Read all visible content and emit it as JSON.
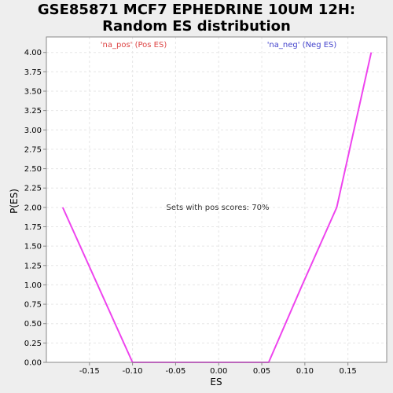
{
  "title_line1": "GSE85871 MCF7 EPHEDRINE 10UM 12H:",
  "title_line2": "Random ES distribution",
  "chart_data": {
    "type": "line",
    "xlabel": "ES",
    "ylabel": "P(ES)",
    "xlim": [
      -0.2,
      0.195
    ],
    "ylim": [
      0,
      4.2
    ],
    "x_ticks": [
      -0.15,
      -0.1,
      -0.05,
      0.0,
      0.05,
      0.1,
      0.15
    ],
    "x_tick_labels": [
      "-0.15",
      "-0.10",
      "-0.05",
      "0.00",
      "0.05",
      "0.10",
      "0.15"
    ],
    "y_ticks": [
      0,
      0.25,
      0.5,
      0.75,
      1.0,
      1.25,
      1.5,
      1.75,
      2.0,
      2.25,
      2.5,
      2.75,
      3.0,
      3.25,
      3.5,
      3.75,
      4.0
    ],
    "y_tick_labels": [
      "0.00",
      "0.25",
      "0.50",
      "0.75",
      "1.00",
      "1.25",
      "1.50",
      "1.75",
      "2.00",
      "2.25",
      "2.50",
      "2.75",
      "3.00",
      "3.25",
      "3.50",
      "3.75",
      "4.00"
    ],
    "grid": true,
    "series": [
      {
        "color": "#ee44ee",
        "x": [
          -0.181,
          -0.1,
          -0.06,
          -0.02,
          0.02,
          0.058,
          0.097,
          0.137,
          0.177
        ],
        "y": [
          2.0,
          0.0,
          0.0,
          0.0,
          0.0,
          0.0,
          1.0,
          2.0,
          4.0
        ]
      }
    ],
    "annotations": {
      "pos_label": "'na_pos' (Pos ES)",
      "pos_color": "#dd4444",
      "neg_label": "'na_neg' (Neg ES)",
      "neg_color": "#4444cc",
      "center_text": "Sets with pos scores: 70%"
    }
  }
}
